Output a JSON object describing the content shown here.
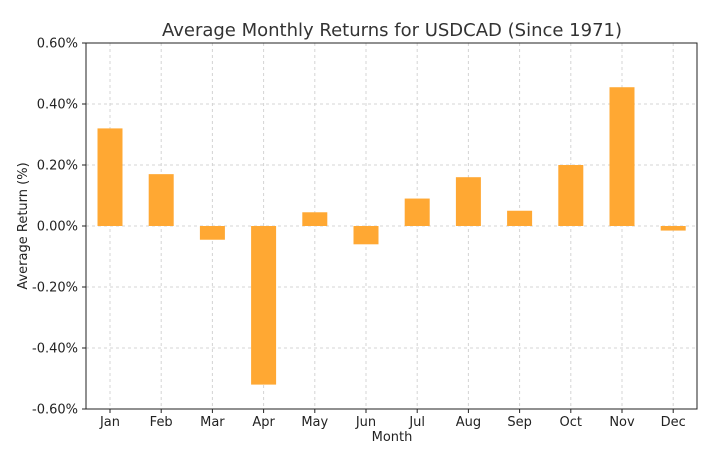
{
  "colors": {
    "bar": "#FFA833",
    "grid": "#d4d4d4",
    "text": "#222222"
  },
  "chart_data": {
    "type": "bar",
    "title": "Average Monthly Returns for USDCAD (Since 1971)",
    "xlabel": "Month",
    "ylabel": "Average Return (%)",
    "categories": [
      "Jan",
      "Feb",
      "Mar",
      "Apr",
      "May",
      "Jun",
      "Jul",
      "Aug",
      "Sep",
      "Oct",
      "Nov",
      "Dec"
    ],
    "values": [
      0.32,
      0.17,
      -0.045,
      -0.52,
      0.045,
      -0.06,
      0.09,
      0.16,
      0.05,
      0.2,
      0.455,
      -0.015
    ],
    "ylim": [
      -0.6,
      0.6
    ],
    "yticks": [
      -0.6,
      -0.4,
      -0.2,
      0.0,
      0.2,
      0.4,
      0.6
    ],
    "ytick_labels": [
      "-0.60%",
      "-0.40%",
      "-0.20%",
      "0.00%",
      "0.20%",
      "0.40%",
      "0.60%"
    ],
    "grid": true
  }
}
